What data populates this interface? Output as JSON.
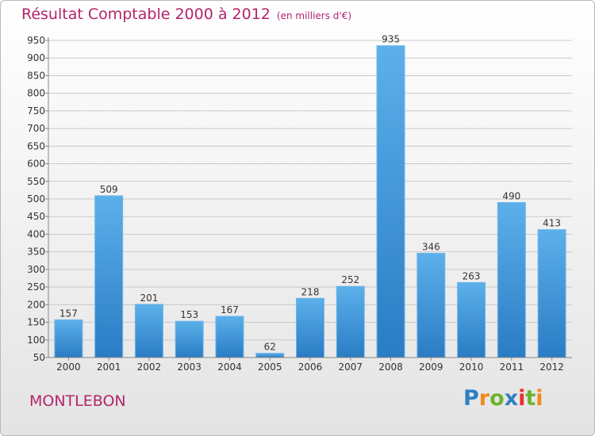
{
  "chart_data": {
    "type": "bar",
    "title": "Résultat Comptable 2000 à 2012",
    "subtitle": "(en milliers d'€)",
    "categories": [
      "2000",
      "2001",
      "2002",
      "2003",
      "2004",
      "2005",
      "2006",
      "2007",
      "2008",
      "2009",
      "2010",
      "2011",
      "2012"
    ],
    "values": [
      157,
      509,
      201,
      153,
      167,
      62,
      218,
      252,
      935,
      346,
      263,
      490,
      413
    ],
    "value_labels": [
      "157",
      "509",
      "201",
      "153",
      "167",
      "62",
      "218",
      "252",
      "935",
      "346",
      "263",
      "490",
      "413"
    ],
    "ylim": [
      50,
      950
    ],
    "yticks": [
      "50",
      "100",
      "150",
      "200",
      "250",
      "300",
      "350",
      "400",
      "450",
      "500",
      "550",
      "600",
      "650",
      "700",
      "750",
      "800",
      "850",
      "900",
      "950"
    ],
    "grid": true,
    "bar_color": "#3a93d8"
  },
  "place_name": "MONTLEBON",
  "logo": {
    "text": "Proxiti",
    "letters": [
      "P",
      "r",
      "o",
      "x",
      "i",
      "t",
      "i"
    ],
    "colors": [
      "#2f7fc4",
      "#f08a1c",
      "#6ab42d",
      "#2f7fc4",
      "#e8312e",
      "#6ab42d",
      "#f08a1c"
    ]
  }
}
